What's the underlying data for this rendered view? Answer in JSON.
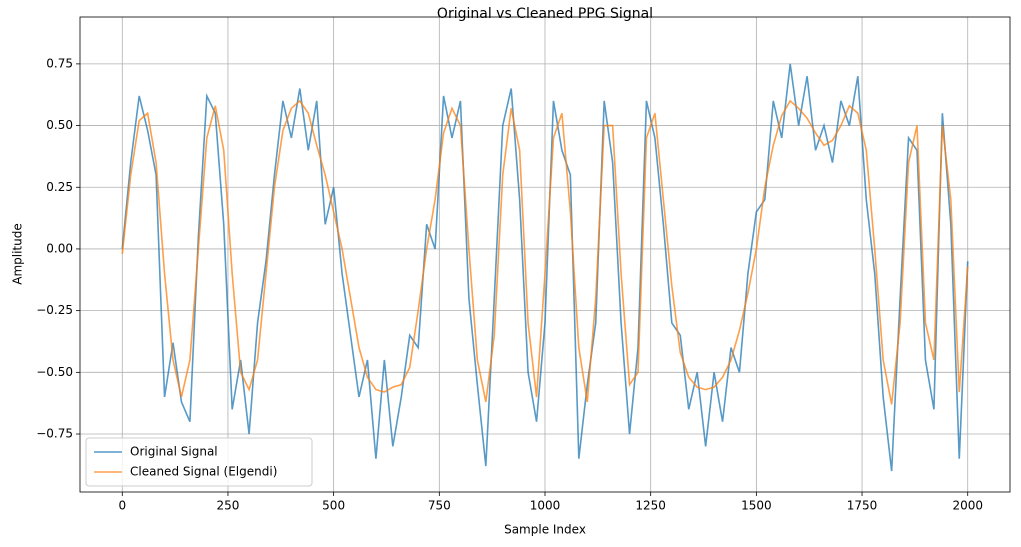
{
  "chart_data": {
    "type": "line",
    "title": "Original vs Cleaned PPG Signal",
    "x_label": "Sample Index",
    "y_label": "Amplitude",
    "x": [
      0,
      20,
      40,
      60,
      80,
      100,
      120,
      140,
      160,
      180,
      200,
      220,
      240,
      260,
      280,
      300,
      320,
      340,
      360,
      380,
      400,
      420,
      440,
      460,
      480,
      500,
      520,
      540,
      560,
      580,
      600,
      620,
      640,
      660,
      680,
      700,
      720,
      740,
      760,
      780,
      800,
      820,
      840,
      860,
      880,
      900,
      920,
      940,
      960,
      980,
      1000,
      1020,
      1040,
      1060,
      1080,
      1100,
      1120,
      1140,
      1160,
      1180,
      1200,
      1220,
      1240,
      1260,
      1280,
      1300,
      1320,
      1340,
      1360,
      1380,
      1400,
      1420,
      1440,
      1460,
      1480,
      1500,
      1520,
      1540,
      1560,
      1580,
      1600,
      1620,
      1640,
      1660,
      1680,
      1700,
      1720,
      1740,
      1760,
      1780,
      1800,
      1820,
      1840,
      1860,
      1880,
      1900,
      1920,
      1940,
      1960,
      1980,
      2000
    ],
    "series": [
      {
        "name": "Original Signal",
        "color": "#1f77b4",
        "values": [
          0.0,
          0.35,
          0.62,
          0.48,
          0.3,
          -0.6,
          -0.38,
          -0.62,
          -0.7,
          0.05,
          0.62,
          0.55,
          0.1,
          -0.65,
          -0.45,
          -0.75,
          -0.3,
          -0.05,
          0.3,
          0.6,
          0.45,
          0.65,
          0.4,
          0.6,
          0.1,
          0.25,
          -0.1,
          -0.35,
          -0.6,
          -0.45,
          -0.85,
          -0.45,
          -0.8,
          -0.6,
          -0.35,
          -0.4,
          0.1,
          0.0,
          0.62,
          0.45,
          0.6,
          -0.2,
          -0.55,
          -0.88,
          -0.2,
          0.5,
          0.65,
          0.2,
          -0.5,
          -0.7,
          -0.3,
          0.6,
          0.4,
          0.3,
          -0.85,
          -0.55,
          -0.3,
          0.6,
          0.35,
          -0.3,
          -0.75,
          -0.4,
          0.6,
          0.45,
          0.1,
          -0.3,
          -0.35,
          -0.65,
          -0.5,
          -0.8,
          -0.5,
          -0.7,
          -0.4,
          -0.5,
          -0.1,
          0.15,
          0.2,
          0.6,
          0.45,
          0.75,
          0.5,
          0.7,
          0.4,
          0.5,
          0.35,
          0.6,
          0.5,
          0.7,
          0.2,
          -0.1,
          -0.6,
          -0.9,
          -0.2,
          0.45,
          0.4,
          -0.45,
          -0.65,
          0.55,
          0.1,
          -0.85,
          -0.05
        ]
      },
      {
        "name": "Cleaned Signal (Elgendi)",
        "color": "#ff7f0e",
        "values": [
          -0.02,
          0.3,
          0.52,
          0.55,
          0.35,
          -0.1,
          -0.45,
          -0.6,
          -0.45,
          0.0,
          0.45,
          0.58,
          0.4,
          -0.1,
          -0.5,
          -0.57,
          -0.45,
          -0.1,
          0.25,
          0.48,
          0.57,
          0.6,
          0.55,
          0.42,
          0.3,
          0.15,
          0.0,
          -0.2,
          -0.4,
          -0.52,
          -0.57,
          -0.58,
          -0.56,
          -0.55,
          -0.48,
          -0.25,
          0.0,
          0.2,
          0.47,
          0.57,
          0.5,
          0.0,
          -0.45,
          -0.62,
          -0.35,
          0.3,
          0.57,
          0.4,
          -0.3,
          -0.6,
          -0.1,
          0.45,
          0.55,
          0.15,
          -0.4,
          -0.62,
          -0.2,
          0.5,
          0.5,
          -0.1,
          -0.55,
          -0.5,
          0.45,
          0.55,
          0.2,
          -0.15,
          -0.42,
          -0.52,
          -0.56,
          -0.57,
          -0.56,
          -0.52,
          -0.45,
          -0.33,
          -0.18,
          0.0,
          0.25,
          0.42,
          0.54,
          0.6,
          0.57,
          0.53,
          0.47,
          0.42,
          0.44,
          0.5,
          0.58,
          0.55,
          0.4,
          0.0,
          -0.45,
          -0.63,
          -0.3,
          0.35,
          0.5,
          -0.3,
          -0.45,
          0.5,
          0.2,
          -0.58,
          -0.07
        ]
      }
    ],
    "xlim": [
      -100,
      2100
    ],
    "xticks": [
      0,
      250,
      500,
      750,
      1000,
      1250,
      1500,
      1750,
      2000
    ],
    "ylim": [
      -0.985,
      0.94
    ],
    "yticks": [
      {
        "value": -0.75,
        "label": "−0.75"
      },
      {
        "value": -0.5,
        "label": "−0.50"
      },
      {
        "value": -0.25,
        "label": "−0.25"
      },
      {
        "value": 0,
        "label": "0.00"
      },
      {
        "value": 0.25,
        "label": "0.25"
      },
      {
        "value": 0.5,
        "label": "0.50"
      },
      {
        "value": 0.75,
        "label": "0.75"
      }
    ],
    "grid": true,
    "legend": "lower left"
  }
}
